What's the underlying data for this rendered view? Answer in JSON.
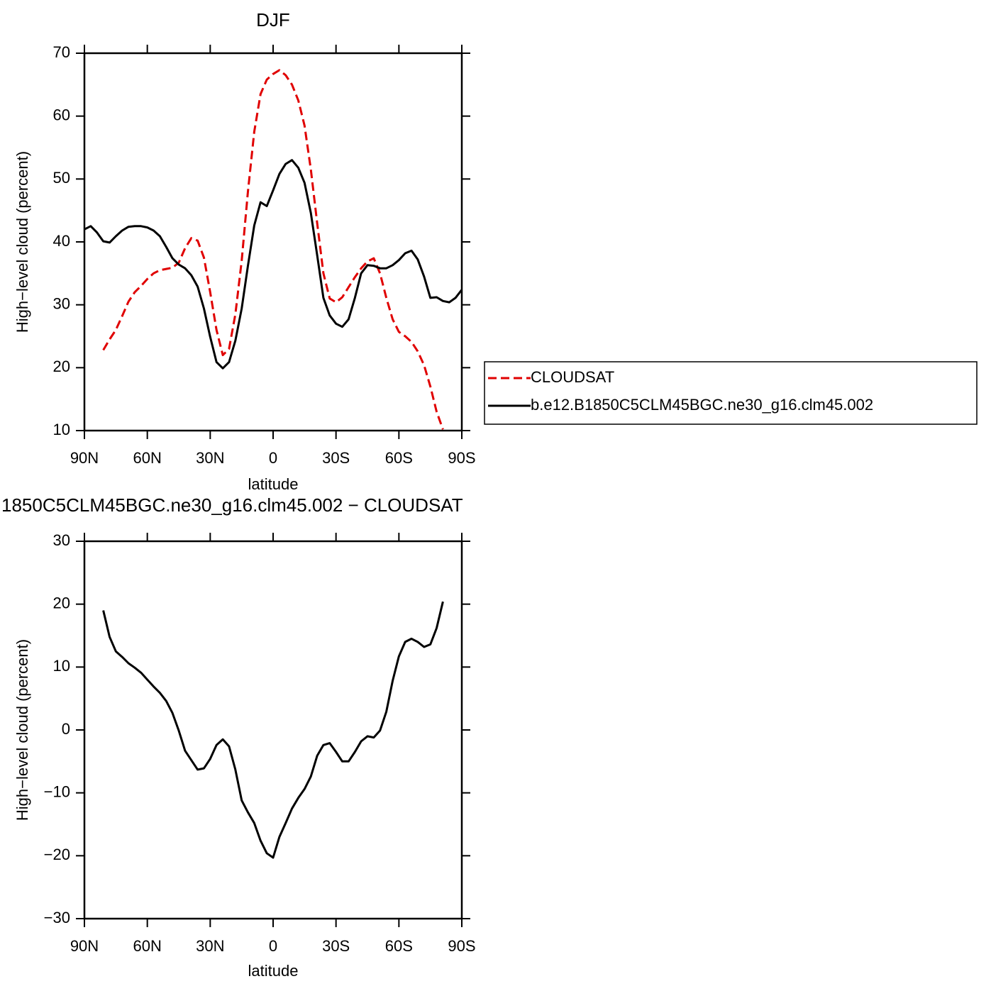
{
  "chart_data": [
    {
      "type": "line",
      "title": "DJF",
      "xlabel": "latitude",
      "ylabel": "High−level cloud (percent)",
      "x": [
        90,
        87,
        84,
        81,
        78,
        75,
        72,
        69,
        66,
        63,
        60,
        57,
        54,
        51,
        48,
        45,
        42,
        39,
        36,
        33,
        30,
        27,
        24,
        21,
        18,
        15,
        12,
        9,
        6,
        3,
        0,
        -3,
        -6,
        -9,
        -12,
        -15,
        -18,
        -21,
        -24,
        -27,
        -30,
        -33,
        -36,
        -39,
        -42,
        -45,
        -48,
        -51,
        -54,
        -57,
        -60,
        -63,
        -66,
        -69,
        -72,
        -75,
        -78,
        -81,
        -84,
        -87,
        -90
      ],
      "xlim": [
        90,
        -90
      ],
      "xticks": [
        {
          "value": 90,
          "label": "90N"
        },
        {
          "value": 60,
          "label": "60N"
        },
        {
          "value": 30,
          "label": "30N"
        },
        0,
        {
          "value": -30,
          "label": "30S"
        },
        {
          "value": -60,
          "label": "60S"
        },
        {
          "value": -90,
          "label": "90S"
        }
      ],
      "ylim": [
        10,
        70
      ],
      "yticks": [
        10,
        20,
        30,
        40,
        50,
        60,
        70
      ],
      "legend": "right",
      "series": [
        {
          "name": "CLOUDSAT",
          "color": "#e00000",
          "dash": true,
          "values": [
            null,
            null,
            null,
            22.8,
            24.5,
            26,
            28.2,
            30.5,
            32,
            33,
            34.1,
            35,
            35.5,
            35.7,
            35.9,
            36.7,
            39,
            40.6,
            40.2,
            37.5,
            32,
            26,
            22,
            23,
            28.5,
            37,
            48,
            57.5,
            63.5,
            65.8,
            66.7,
            67.3,
            66.5,
            65,
            62.5,
            58.5,
            51.5,
            43,
            35,
            31,
            30.4,
            31.2,
            32.8,
            34.4,
            35.8,
            36.9,
            37.4,
            35,
            31.1,
            27.7,
            25.7,
            25,
            24.1,
            22.6,
            20.4,
            17,
            13,
            10.2,
            null,
            null,
            null
          ]
        },
        {
          "name": "b.e12.B1850C5CLM45BGC.ne30_g16.clm45.002",
          "color": "#000000",
          "dash": false,
          "values": [
            42,
            42.5,
            41.5,
            40.1,
            39.9,
            40.9,
            41.8,
            42.4,
            42.5,
            42.5,
            42.3,
            41.8,
            40.9,
            39.2,
            37.4,
            36.4,
            35.8,
            34.7,
            32.9,
            29.4,
            24.9,
            20.9,
            19.9,
            20.9,
            24.3,
            29.4,
            36.2,
            42.6,
            46.3,
            45.7,
            48.2,
            50.8,
            52.4,
            53,
            51.8,
            49.4,
            44.6,
            37.9,
            31.1,
            28.3,
            27,
            26.5,
            27.7,
            31.1,
            35,
            36.3,
            36.2,
            35.8,
            35.8,
            36.3,
            37.1,
            38.2,
            38.6,
            37.2,
            34.5,
            31.1,
            31.2,
            30.6,
            30.4,
            31.1,
            32.4
          ]
        }
      ]
    },
    {
      "type": "line",
      "title": "1850C5CLM45BGC.ne30_g16.clm45.002 − CLOUDSAT",
      "xlabel": "latitude",
      "ylabel": "High−level cloud (percent)",
      "x": [
        90,
        87,
        84,
        81,
        78,
        75,
        72,
        69,
        66,
        63,
        60,
        57,
        54,
        51,
        48,
        45,
        42,
        39,
        36,
        33,
        30,
        27,
        24,
        21,
        18,
        15,
        12,
        9,
        6,
        3,
        0,
        -3,
        -6,
        -9,
        -12,
        -15,
        -18,
        -21,
        -24,
        -27,
        -30,
        -33,
        -36,
        -39,
        -42,
        -45,
        -48,
        -51,
        -54,
        -57,
        -60,
        -63,
        -66,
        -69,
        -72,
        -75,
        -78,
        -81,
        -84,
        -87,
        -90
      ],
      "xlim": [
        90,
        -90
      ],
      "xticks": [
        {
          "value": 90,
          "label": "90N"
        },
        {
          "value": 60,
          "label": "60N"
        },
        {
          "value": 30,
          "label": "30N"
        },
        0,
        {
          "value": -30,
          "label": "30S"
        },
        {
          "value": -60,
          "label": "60S"
        },
        {
          "value": -90,
          "label": "90S"
        }
      ],
      "ylim": [
        -30,
        30
      ],
      "yticks": [
        {
          "value": -30,
          "label": "−30"
        },
        {
          "value": -20,
          "label": "−20"
        },
        {
          "value": -10,
          "label": "−10"
        },
        0,
        10,
        20,
        30
      ],
      "series": [
        {
          "color": "#000000",
          "dash": false,
          "values": [
            null,
            null,
            null,
            19,
            14.8,
            12.5,
            11.6,
            10.6,
            9.9,
            9.1,
            8,
            6.9,
            5.9,
            4.6,
            2.7,
            -0.1,
            -3.3,
            -4.8,
            -6.3,
            -6.1,
            -4.6,
            -2.4,
            -1.5,
            -2.6,
            -6.3,
            -11.2,
            -13.1,
            -14.8,
            -17.6,
            -19.6,
            -20.3,
            -17,
            -14.8,
            -12.5,
            -10.8,
            -9.4,
            -7.4,
            -4.1,
            -2.4,
            -2.1,
            -3.5,
            -5,
            -5,
            -3.5,
            -1.8,
            -1,
            -1.2,
            -0.1,
            2.9,
            7.8,
            11.7,
            14,
            14.5,
            14,
            13.2,
            13.6,
            16.2,
            20.4,
            null,
            null,
            null
          ]
        }
      ]
    }
  ]
}
